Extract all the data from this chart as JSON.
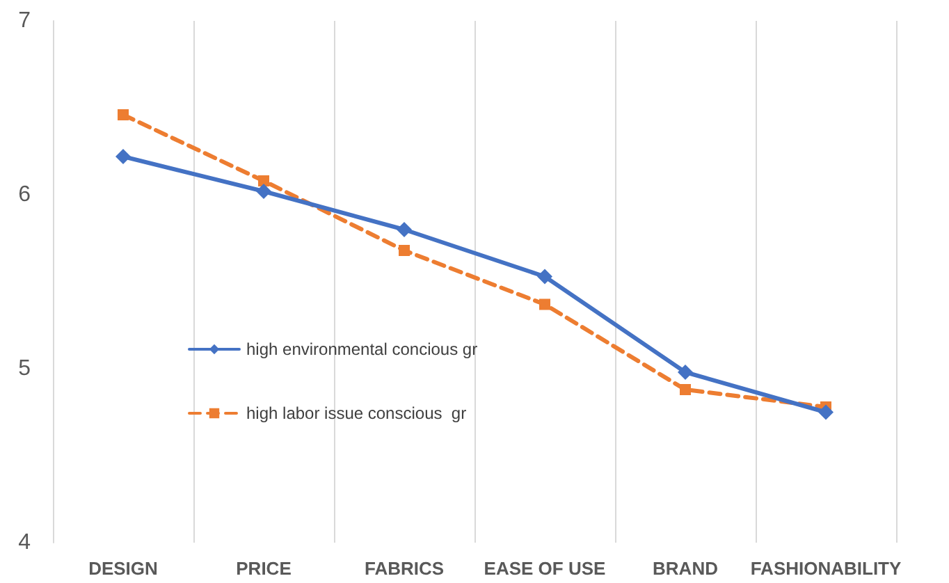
{
  "chart_data": {
    "type": "line",
    "categories": [
      "DESIGN",
      "PRICE",
      "FABRICS",
      "EASE OF USE",
      "BRAND",
      "FASHIONABILITY"
    ],
    "series": [
      {
        "name": "high environmental concious gr",
        "color": "#4472c4",
        "marker": "diamond",
        "line_style": "solid",
        "values": [
          6.22,
          6.02,
          5.8,
          5.53,
          4.98,
          4.75
        ]
      },
      {
        "name": "high labor issue conscious  gr",
        "color": "#ed7d31",
        "marker": "square",
        "line_style": "dashed",
        "values": [
          6.46,
          6.08,
          5.68,
          5.37,
          4.88,
          4.78
        ]
      }
    ],
    "ylim": [
      4,
      7
    ],
    "yticks": [
      4,
      5,
      6,
      7
    ],
    "grid": "x",
    "legend": "center"
  }
}
